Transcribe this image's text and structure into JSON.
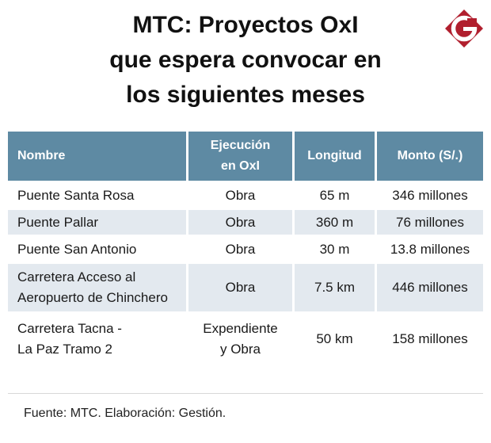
{
  "title": {
    "line1": "MTC: Proyectos OxI",
    "line2": "que espera convocar en",
    "line3": "los siguientes meses"
  },
  "logo": {
    "letter": "G",
    "color": "#b11f2e",
    "icon": "gestion-logo-icon"
  },
  "table": {
    "headers": {
      "nombre": "Nombre",
      "ejecucion_line1": "Ejecución",
      "ejecucion_line2": "en OxI",
      "longitud": "Longitud",
      "monto": "Monto (S/.)"
    },
    "header_color": "#5e8aa3",
    "stripe_color": "#e3e9ef",
    "rows": [
      {
        "nombre": [
          "Puente Santa Rosa"
        ],
        "ejecucion": [
          "Obra"
        ],
        "longitud": "65 m",
        "monto": "346 millones"
      },
      {
        "nombre": [
          "Puente Pallar"
        ],
        "ejecucion": [
          "Obra"
        ],
        "longitud": "360 m",
        "monto": "76 millones"
      },
      {
        "nombre": [
          "Puente San Antonio"
        ],
        "ejecucion": [
          "Obra"
        ],
        "longitud": "30 m",
        "monto": "13.8 millones"
      },
      {
        "nombre": [
          "Carretera Acceso al",
          "Aeropuerto de Chinchero"
        ],
        "ejecucion": [
          "Obra"
        ],
        "longitud": "7.5 km",
        "monto": "446 millones"
      },
      {
        "nombre": [
          "Carretera Tacna -",
          "La Paz Tramo 2"
        ],
        "ejecucion": [
          "Expendiente",
          "y Obra"
        ],
        "longitud": "50 km",
        "monto": "158 millones"
      }
    ]
  },
  "source": "Fuente: MTC. Elaboración: Gestión."
}
